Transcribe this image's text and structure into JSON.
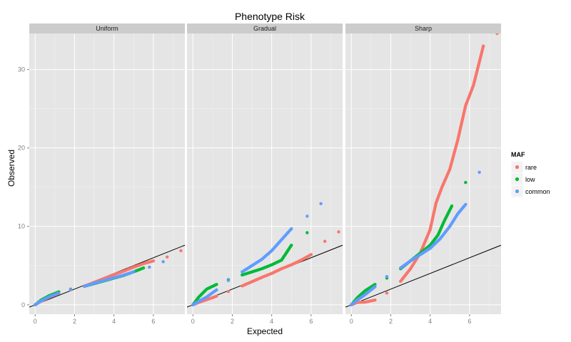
{
  "chart_data": {
    "type": "scatter",
    "title": "Phenotype Risk",
    "xlabel": "Expected",
    "ylabel": "Observed",
    "xlim": [
      -0.3,
      7.6
    ],
    "ylim": [
      -1.2,
      34.6
    ],
    "x_ticks": [
      0,
      2,
      4,
      6
    ],
    "y_ticks": [
      0,
      10,
      20,
      30
    ],
    "grid": true,
    "reference_line": {
      "slope": 1,
      "intercept": 0
    },
    "legend": {
      "title": "MAF",
      "position": "right",
      "entries": [
        {
          "name": "rare",
          "color": "#F8766D"
        },
        {
          "name": "low",
          "color": "#00BA38"
        },
        {
          "name": "common",
          "color": "#619CFF"
        }
      ]
    },
    "panels": [
      {
        "title": "Uniform",
        "series": [
          {
            "name": "rare",
            "points": [
              [
                0,
                0
              ],
              [
                0.3,
                0.45
              ],
              [
                0.7,
                0.95
              ],
              [
                1.2,
                1.45
              ],
              [
                1.8,
                1.9
              ],
              [
                2.5,
                2.4
              ],
              [
                3.0,
                2.85
              ],
              [
                3.5,
                3.35
              ],
              [
                4.0,
                3.85
              ],
              [
                4.5,
                4.3
              ],
              [
                5.0,
                4.8
              ],
              [
                5.5,
                5.25
              ],
              [
                6.0,
                5.6
              ],
              [
                6.7,
                6.1
              ],
              [
                7.4,
                6.9
              ]
            ]
          },
          {
            "name": "low",
            "points": [
              [
                0,
                0
              ],
              [
                0.3,
                0.6
              ],
              [
                0.7,
                1.15
              ],
              [
                1.2,
                1.65
              ],
              [
                1.8,
                2.0
              ],
              [
                2.5,
                2.35
              ],
              [
                3.0,
                2.7
              ],
              [
                3.5,
                3.05
              ],
              [
                4.0,
                3.4
              ],
              [
                4.5,
                3.75
              ],
              [
                5.0,
                4.2
              ],
              [
                5.5,
                4.7
              ]
            ]
          },
          {
            "name": "common",
            "points": [
              [
                0,
                0
              ],
              [
                0.3,
                0.5
              ],
              [
                0.7,
                1.0
              ],
              [
                1.2,
                1.5
              ],
              [
                1.8,
                1.95
              ],
              [
                2.5,
                2.35
              ],
              [
                3.0,
                2.75
              ],
              [
                3.5,
                3.1
              ],
              [
                4.0,
                3.45
              ],
              [
                4.5,
                3.8
              ],
              [
                5.0,
                4.2
              ],
              [
                5.8,
                4.8
              ],
              [
                6.5,
                5.5
              ]
            ]
          }
        ]
      },
      {
        "title": "Gradual",
        "series": [
          {
            "name": "rare",
            "points": [
              [
                0,
                0
              ],
              [
                0.3,
                0.3
              ],
              [
                0.7,
                0.65
              ],
              [
                1.2,
                1.1
              ],
              [
                1.8,
                1.7
              ],
              [
                2.5,
                2.4
              ],
              [
                3.0,
                2.95
              ],
              [
                3.5,
                3.5
              ],
              [
                4.0,
                4.0
              ],
              [
                4.5,
                4.6
              ],
              [
                5.0,
                5.1
              ],
              [
                5.5,
                5.7
              ],
              [
                6.0,
                6.4
              ],
              [
                6.7,
                8.1
              ],
              [
                7.4,
                9.3
              ]
            ]
          },
          {
            "name": "low",
            "points": [
              [
                0,
                0
              ],
              [
                0.3,
                1.0
              ],
              [
                0.7,
                2.0
              ],
              [
                1.2,
                2.6
              ],
              [
                1.8,
                3.2
              ],
              [
                2.5,
                3.8
              ],
              [
                3.0,
                4.2
              ],
              [
                3.5,
                4.6
              ],
              [
                4.0,
                5.1
              ],
              [
                4.5,
                5.7
              ],
              [
                5.0,
                7.6
              ],
              [
                5.8,
                9.2
              ]
            ]
          },
          {
            "name": "common",
            "points": [
              [
                0,
                0
              ],
              [
                0.3,
                0.45
              ],
              [
                0.7,
                1.0
              ],
              [
                1.2,
                1.9
              ],
              [
                1.8,
                3.1
              ],
              [
                2.5,
                4.2
              ],
              [
                3.0,
                5.0
              ],
              [
                3.5,
                5.8
              ],
              [
                4.0,
                6.9
              ],
              [
                4.5,
                8.3
              ],
              [
                5.0,
                9.7
              ],
              [
                5.8,
                11.3
              ],
              [
                6.5,
                12.9
              ]
            ]
          }
        ]
      },
      {
        "title": "Sharp",
        "series": [
          {
            "name": "rare",
            "points": [
              [
                0,
                0
              ],
              [
                0.3,
                0.3
              ],
              [
                0.7,
                0.35
              ],
              [
                1.2,
                0.6
              ],
              [
                1.8,
                1.5
              ],
              [
                2.5,
                3.0
              ],
              [
                3.0,
                4.6
              ],
              [
                3.5,
                6.6
              ],
              [
                4.0,
                9.6
              ],
              [
                4.3,
                13.0
              ],
              [
                4.6,
                15.0
              ],
              [
                5.0,
                17.3
              ],
              [
                5.4,
                21.0
              ],
              [
                5.8,
                25.4
              ],
              [
                6.2,
                28.0
              ],
              [
                6.7,
                33.0
              ],
              [
                7.4,
                34.6
              ]
            ]
          },
          {
            "name": "low",
            "points": [
              [
                0,
                0
              ],
              [
                0.3,
                0.9
              ],
              [
                0.7,
                1.8
              ],
              [
                1.2,
                2.6
              ],
              [
                1.8,
                3.4
              ],
              [
                2.5,
                4.6
              ],
              [
                3.0,
                5.6
              ],
              [
                3.5,
                6.6
              ],
              [
                4.0,
                7.6
              ],
              [
                4.4,
                8.9
              ],
              [
                4.7,
                10.6
              ],
              [
                5.1,
                12.6
              ],
              [
                5.8,
                15.6
              ]
            ]
          },
          {
            "name": "common",
            "points": [
              [
                0,
                0
              ],
              [
                0.3,
                0.6
              ],
              [
                0.7,
                1.3
              ],
              [
                1.2,
                2.3
              ],
              [
                1.8,
                3.6
              ],
              [
                2.5,
                4.7
              ],
              [
                3.0,
                5.6
              ],
              [
                3.5,
                6.4
              ],
              [
                4.0,
                7.2
              ],
              [
                4.5,
                8.4
              ],
              [
                5.0,
                10.0
              ],
              [
                5.4,
                11.6
              ],
              [
                5.8,
                12.8
              ],
              [
                6.5,
                16.9
              ]
            ]
          }
        ]
      }
    ]
  }
}
